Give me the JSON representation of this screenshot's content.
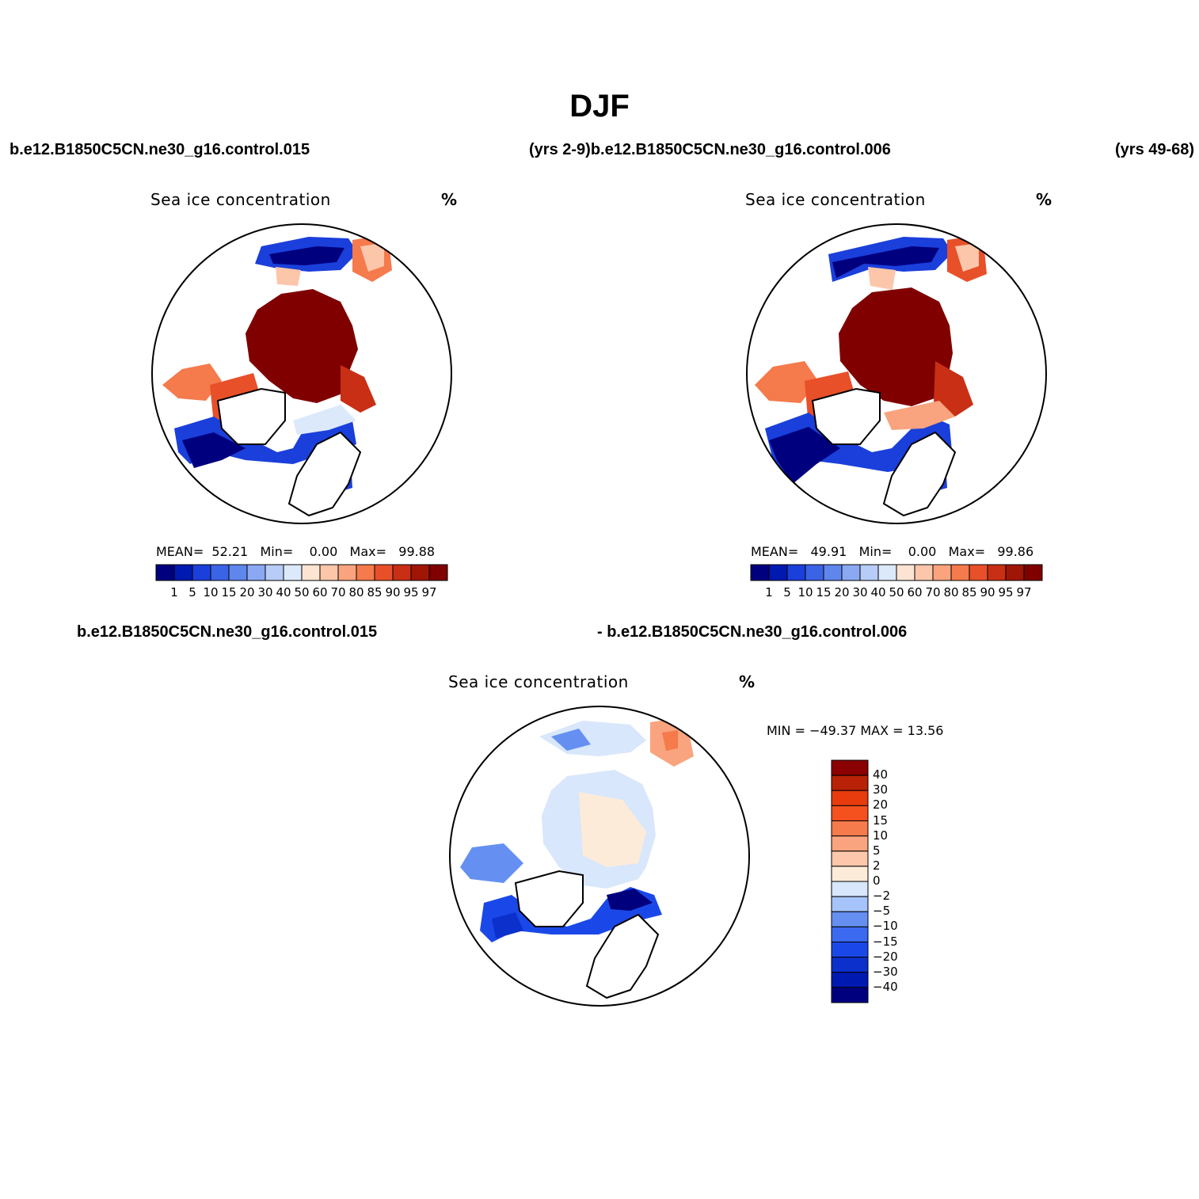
{
  "page_title": "DJF",
  "header": {
    "case_a": "b.e12.B1850C5CN.ne30_g16.control.015",
    "years_a_and_case_b": "(yrs 2-9)b.e12.B1850C5CN.ne30_g16.control.006",
    "years_b": "(yrs 49-68)"
  },
  "diff_header": {
    "case_a": "b.e12.B1850C5CN.ne30_g16.control.015",
    "case_b": "- b.e12.B1850C5CN.ne30_g16.control.006"
  },
  "panels": [
    {
      "variable": "Sea ice concentration",
      "unit": "%",
      "stats": {
        "mean_label": "MEAN=",
        "mean": "52.21",
        "min_label": "Min=",
        "min": "0.00",
        "max_label": "Max=",
        "max": "99.88"
      }
    },
    {
      "variable": "Sea ice concentration",
      "unit": "%",
      "stats": {
        "mean_label": "MEAN=",
        "mean": "49.91",
        "min_label": "Min=",
        "min": "0.00",
        "max_label": "Max=",
        "max": "99.86"
      }
    }
  ],
  "diff_panel": {
    "variable": "Sea ice concentration",
    "unit": "%",
    "minmax": "MIN = −49.37 MAX =   13.56"
  },
  "colorbar_abs": {
    "colors": [
      "#00007f",
      "#0019b0",
      "#1a3fdb",
      "#3b63e6",
      "#5e86ec",
      "#8aa9f2",
      "#b7cdf7",
      "#dce9fb",
      "#fde4d2",
      "#fcc6aa",
      "#f9a47e",
      "#f57a4c",
      "#e8502a",
      "#c82f15",
      "#a01606",
      "#800000"
    ],
    "labels": [
      "1",
      "5",
      "10",
      "15",
      "20",
      "30",
      "40",
      "50",
      "60",
      "70",
      "80",
      "85",
      "90",
      "95",
      "97"
    ]
  },
  "colorbar_diff": {
    "colors": [
      "#00007f",
      "#0019b0",
      "#0b30cc",
      "#1a48e8",
      "#3b6af0",
      "#6590f2",
      "#a6c4fa",
      "#d8e7fb",
      "#fdebd9",
      "#fcc7aa",
      "#f9a47e",
      "#f57a4c",
      "#f4511f",
      "#e83c0e",
      "#b82206",
      "#8b0000"
    ],
    "labels": [
      "40",
      "30",
      "20",
      "15",
      "10",
      "5",
      "2",
      "0",
      "−2",
      "−5",
      "−10",
      "−15",
      "−20",
      "−30",
      "−40"
    ]
  }
}
